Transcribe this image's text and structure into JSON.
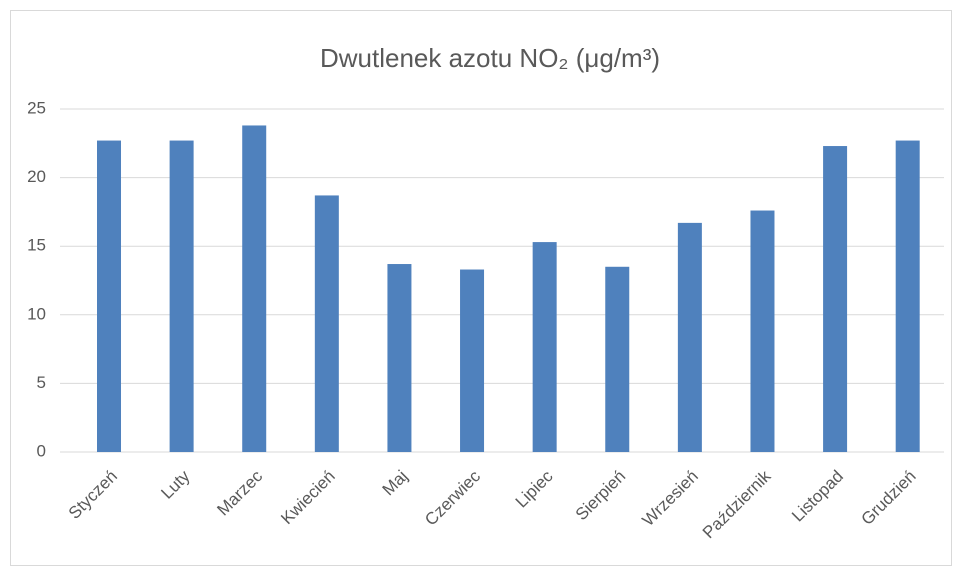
{
  "chart_data": {
    "type": "bar",
    "title": "Dwutlenek azotu NO₂ (μg/m³)",
    "categories": [
      "Styczeń",
      "Luty",
      "Marzec",
      "Kwiecień",
      "Maj",
      "Czerwiec",
      "Lipiec",
      "Sierpień",
      "Wrzesień",
      "Październik",
      "Listopad",
      "Grudzień"
    ],
    "values": [
      22.7,
      22.7,
      23.8,
      18.7,
      13.7,
      13.3,
      15.3,
      13.5,
      16.7,
      17.6,
      22.3,
      22.7
    ],
    "color": "#4f81bd",
    "ylim": [
      0,
      25
    ],
    "yticks": [
      0,
      5,
      10,
      15,
      20,
      25
    ],
    "grid": true
  }
}
